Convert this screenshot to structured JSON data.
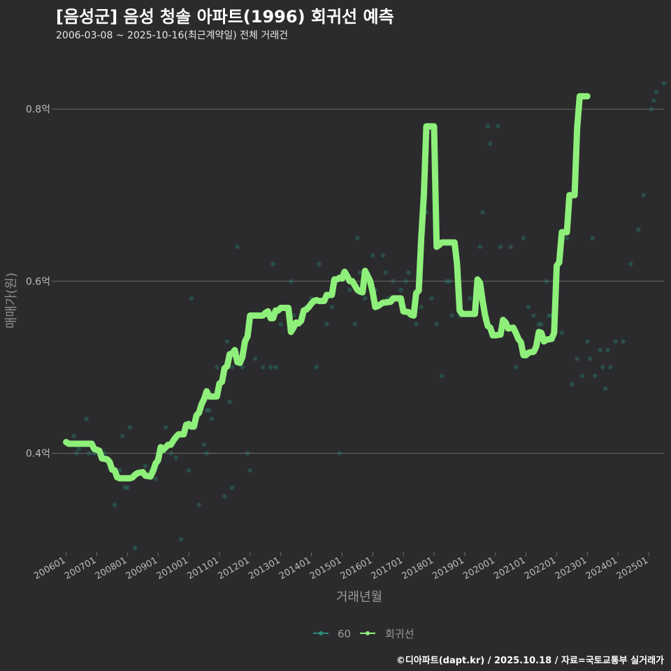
{
  "title": "[음성군] 음성 청솔 아파트(1996) 회귀선 예측",
  "subtitle": "2006-03-08 ~ 2025-10-16(최근계약일) 전체 거래건",
  "caption": "©디아파트(dapt.kr) / 2025.10.18 / 자료=국토교통부 실거래가",
  "colors": {
    "background": "#2b2b2d",
    "grid": "#6a6a6a",
    "points": "#2a7a6a",
    "line": "#8ef07a",
    "text": "#bdbdbd"
  },
  "chart_data": {
    "type": "line",
    "xlabel": "거래년월",
    "ylabel": "매매가(원)",
    "x_unit": "months since 2006-01",
    "xlim": [
      -4,
      234
    ],
    "ylim": [
      0.285,
      0.87
    ],
    "y_ticks": [
      {
        "value": 0.4,
        "label": "0.4억"
      },
      {
        "value": 0.6,
        "label": "0.6억"
      },
      {
        "value": 0.8,
        "label": "0.8억"
      }
    ],
    "x_ticks": [
      {
        "value": 0,
        "label": "200601"
      },
      {
        "value": 12,
        "label": "200701"
      },
      {
        "value": 24,
        "label": "200801"
      },
      {
        "value": 36,
        "label": "200901"
      },
      {
        "value": 48,
        "label": "201001"
      },
      {
        "value": 60,
        "label": "201101"
      },
      {
        "value": 72,
        "label": "201201"
      },
      {
        "value": 84,
        "label": "201301"
      },
      {
        "value": 96,
        "label": "201401"
      },
      {
        "value": 108,
        "label": "201501"
      },
      {
        "value": 120,
        "label": "201601"
      },
      {
        "value": 132,
        "label": "201701"
      },
      {
        "value": 144,
        "label": "201801"
      },
      {
        "value": 156,
        "label": "201901"
      },
      {
        "value": 168,
        "label": "202001"
      },
      {
        "value": 180,
        "label": "202101"
      },
      {
        "value": 192,
        "label": "202201"
      },
      {
        "value": 204,
        "label": "202301"
      },
      {
        "value": 216,
        "label": "202401"
      },
      {
        "value": 228,
        "label": "202501"
      }
    ],
    "legend": {
      "position": "bottom",
      "entries": [
        "60",
        "회귀선"
      ]
    },
    "series": [
      {
        "name": "60",
        "kind": "scatter",
        "points": [
          [
            2,
            0.41
          ],
          [
            3,
            0.42
          ],
          [
            4,
            0.4
          ],
          [
            5,
            0.405
          ],
          [
            8,
            0.44
          ],
          [
            9,
            0.4
          ],
          [
            11,
            0.4
          ],
          [
            14,
            0.395
          ],
          [
            15,
            0.4
          ],
          [
            19,
            0.34
          ],
          [
            21,
            0.38
          ],
          [
            22,
            0.42
          ],
          [
            23,
            0.36
          ],
          [
            24,
            0.36
          ],
          [
            25,
            0.43
          ],
          [
            26,
            0.37
          ],
          [
            27,
            0.29
          ],
          [
            31,
            0.385
          ],
          [
            33,
            0.38
          ],
          [
            35,
            0.37
          ],
          [
            39,
            0.43
          ],
          [
            41,
            0.4
          ],
          [
            43,
            0.395
          ],
          [
            45,
            0.3
          ],
          [
            48,
            0.38
          ],
          [
            49,
            0.58
          ],
          [
            52,
            0.34
          ],
          [
            54,
            0.41
          ],
          [
            55,
            0.4
          ],
          [
            55,
            0.45
          ],
          [
            56,
            0.45
          ],
          [
            57,
            0.44
          ],
          [
            59,
            0.5
          ],
          [
            62,
            0.35
          ],
          [
            63,
            0.53
          ],
          [
            64,
            0.46
          ],
          [
            65,
            0.5
          ],
          [
            65,
            0.36
          ],
          [
            67,
            0.64
          ],
          [
            69,
            0.5
          ],
          [
            70,
            0.53
          ],
          [
            71,
            0.4
          ],
          [
            72,
            0.38
          ],
          [
            74,
            0.51
          ],
          [
            77,
            0.5
          ],
          [
            80,
            0.5
          ],
          [
            81,
            0.62
          ],
          [
            82,
            0.5
          ],
          [
            84,
            0.55
          ],
          [
            88,
            0.6
          ],
          [
            89,
            0.56
          ],
          [
            92,
            0.56
          ],
          [
            94,
            0.57
          ],
          [
            96,
            0.58
          ],
          [
            98,
            0.5
          ],
          [
            99,
            0.62
          ],
          [
            102,
            0.55
          ],
          [
            104,
            0.57
          ],
          [
            107,
            0.4
          ],
          [
            108,
            0.61
          ],
          [
            111,
            0.59
          ],
          [
            113,
            0.55
          ],
          [
            114,
            0.65
          ],
          [
            115,
            0.61
          ],
          [
            117,
            0.58
          ],
          [
            119,
            0.6
          ],
          [
            120,
            0.63
          ],
          [
            121,
            0.59
          ],
          [
            124,
            0.63
          ],
          [
            125,
            0.61
          ],
          [
            126,
            0.58
          ],
          [
            128,
            0.6
          ],
          [
            131,
            0.59
          ],
          [
            133,
            0.6
          ],
          [
            134,
            0.61
          ],
          [
            137,
            0.55
          ],
          [
            139,
            0.57
          ],
          [
            141,
            0.68
          ],
          [
            143,
            0.58
          ],
          [
            145,
            0.55
          ],
          [
            147,
            0.49
          ],
          [
            149,
            0.6
          ],
          [
            150,
            0.6
          ],
          [
            151,
            0.56
          ],
          [
            154,
            0.56
          ],
          [
            158,
            0.58
          ],
          [
            160,
            0.59
          ],
          [
            162,
            0.64
          ],
          [
            163,
            0.68
          ],
          [
            165,
            0.78
          ],
          [
            166,
            0.76
          ],
          [
            169,
            0.78
          ],
          [
            170,
            0.64
          ],
          [
            174,
            0.64
          ],
          [
            176,
            0.5
          ],
          [
            179,
            0.65
          ],
          [
            181,
            0.57
          ],
          [
            183,
            0.56
          ],
          [
            185,
            0.55
          ],
          [
            186,
            0.55
          ],
          [
            188,
            0.6
          ],
          [
            189,
            0.56
          ],
          [
            190,
            0.56
          ],
          [
            191,
            0.55
          ],
          [
            194,
            0.54
          ],
          [
            196,
            0.65
          ],
          [
            198,
            0.48
          ],
          [
            200,
            0.51
          ],
          [
            202,
            0.49
          ],
          [
            204,
            0.53
          ],
          [
            205,
            0.51
          ],
          [
            206,
            0.65
          ],
          [
            207,
            0.49
          ],
          [
            209,
            0.52
          ],
          [
            210,
            0.5
          ],
          [
            211,
            0.475
          ],
          [
            212,
            0.52
          ],
          [
            213,
            0.5
          ],
          [
            215,
            0.53
          ],
          [
            218,
            0.53
          ],
          [
            221,
            0.62
          ],
          [
            224,
            0.66
          ],
          [
            226,
            0.7
          ],
          [
            229,
            0.8
          ],
          [
            230,
            0.81
          ],
          [
            231,
            0.82
          ],
          [
            234,
            0.83
          ]
        ]
      },
      {
        "name": "회귀선",
        "kind": "line",
        "points": [
          [
            0,
            0.413
          ],
          [
            1,
            0.411
          ],
          [
            6,
            0.411
          ],
          [
            8,
            0.411
          ],
          [
            10,
            0.411
          ],
          [
            11,
            0.405
          ],
          [
            13,
            0.403
          ],
          [
            14,
            0.394
          ],
          [
            16,
            0.393
          ],
          [
            17,
            0.39
          ],
          [
            18,
            0.381
          ],
          [
            19,
            0.38
          ],
          [
            20,
            0.372
          ],
          [
            21,
            0.371
          ],
          [
            25,
            0.371
          ],
          [
            26,
            0.372
          ],
          [
            27,
            0.375
          ],
          [
            28,
            0.377
          ],
          [
            30,
            0.378
          ],
          [
            31,
            0.374
          ],
          [
            33,
            0.373
          ],
          [
            34,
            0.379
          ],
          [
            35,
            0.388
          ],
          [
            36,
            0.392
          ],
          [
            37,
            0.407
          ],
          [
            38,
            0.404
          ],
          [
            40,
            0.41
          ],
          [
            41,
            0.41
          ],
          [
            42,
            0.415
          ],
          [
            43,
            0.419
          ],
          [
            44,
            0.422
          ],
          [
            46,
            0.422
          ],
          [
            47,
            0.433
          ],
          [
            48,
            0.434
          ],
          [
            49,
            0.431
          ],
          [
            50,
            0.431
          ],
          [
            51,
            0.444
          ],
          [
            52,
            0.447
          ],
          [
            53,
            0.457
          ],
          [
            54,
            0.463
          ],
          [
            55,
            0.472
          ],
          [
            56,
            0.466
          ],
          [
            57,
            0.466
          ],
          [
            59,
            0.466
          ],
          [
            60,
            0.481
          ],
          [
            61,
            0.483
          ],
          [
            62,
            0.499
          ],
          [
            63,
            0.501
          ],
          [
            64,
            0.515
          ],
          [
            65,
            0.516
          ],
          [
            66,
            0.52
          ],
          [
            67,
            0.506
          ],
          [
            68,
            0.505
          ],
          [
            69,
            0.512
          ],
          [
            70,
            0.53
          ],
          [
            71,
            0.536
          ],
          [
            72,
            0.56
          ],
          [
            77,
            0.56
          ],
          [
            78,
            0.563
          ],
          [
            79,
            0.565
          ],
          [
            80,
            0.557
          ],
          [
            81,
            0.557
          ],
          [
            82,
            0.566
          ],
          [
            83,
            0.566
          ],
          [
            84,
            0.569
          ],
          [
            87,
            0.569
          ],
          [
            88,
            0.541
          ],
          [
            89,
            0.546
          ],
          [
            90,
            0.552
          ],
          [
            91,
            0.551
          ],
          [
            92,
            0.554
          ],
          [
            93,
            0.566
          ],
          [
            94,
            0.567
          ],
          [
            95,
            0.57
          ],
          [
            96,
            0.574
          ],
          [
            97,
            0.577
          ],
          [
            98,
            0.578
          ],
          [
            99,
            0.577
          ],
          [
            101,
            0.577
          ],
          [
            102,
            0.584
          ],
          [
            104,
            0.584
          ],
          [
            105,
            0.602
          ],
          [
            106,
            0.602
          ],
          [
            107,
            0.604
          ],
          [
            108,
            0.603
          ],
          [
            109,
            0.611
          ],
          [
            110,
            0.606
          ],
          [
            111,
            0.6
          ],
          [
            112,
            0.6
          ],
          [
            113,
            0.595
          ],
          [
            114,
            0.59
          ],
          [
            115,
            0.588
          ],
          [
            116,
            0.587
          ],
          [
            117,
            0.612
          ],
          [
            118,
            0.606
          ],
          [
            119,
            0.6
          ],
          [
            120,
            0.587
          ],
          [
            121,
            0.57
          ],
          [
            122,
            0.571
          ],
          [
            123,
            0.573
          ],
          [
            124,
            0.575
          ],
          [
            127,
            0.576
          ],
          [
            128,
            0.58
          ],
          [
            131,
            0.58
          ],
          [
            132,
            0.565
          ],
          [
            134,
            0.564
          ],
          [
            135,
            0.561
          ],
          [
            136,
            0.56
          ],
          [
            137,
            0.586
          ],
          [
            138,
            0.589
          ],
          [
            139,
            0.65
          ],
          [
            140,
            0.7
          ],
          [
            141,
            0.78
          ],
          [
            142,
            0.78
          ],
          [
            144,
            0.78
          ],
          [
            145,
            0.64
          ],
          [
            146,
            0.642
          ],
          [
            147,
            0.645
          ],
          [
            152,
            0.645
          ],
          [
            153,
            0.62
          ],
          [
            154,
            0.566
          ],
          [
            155,
            0.562
          ],
          [
            156,
            0.562
          ],
          [
            160,
            0.562
          ],
          [
            161,
            0.602
          ],
          [
            162,
            0.598
          ],
          [
            163,
            0.577
          ],
          [
            164,
            0.56
          ],
          [
            165,
            0.548
          ],
          [
            166,
            0.546
          ],
          [
            167,
            0.537
          ],
          [
            168,
            0.537
          ],
          [
            170,
            0.538
          ],
          [
            171,
            0.555
          ],
          [
            172,
            0.552
          ],
          [
            173,
            0.545
          ],
          [
            175,
            0.546
          ],
          [
            176,
            0.54
          ],
          [
            177,
            0.533
          ],
          [
            178,
            0.529
          ],
          [
            179,
            0.514
          ],
          [
            180,
            0.514
          ],
          [
            181,
            0.517
          ],
          [
            183,
            0.518
          ],
          [
            184,
            0.524
          ],
          [
            185,
            0.541
          ],
          [
            186,
            0.54
          ],
          [
            187,
            0.53
          ],
          [
            188,
            0.532
          ],
          [
            190,
            0.533
          ],
          [
            191,
            0.54
          ],
          [
            192,
            0.618
          ],
          [
            193,
            0.622
          ],
          [
            194,
            0.657
          ],
          [
            195,
            0.657
          ],
          [
            196,
            0.657
          ],
          [
            197,
            0.7
          ],
          [
            198,
            0.7
          ],
          [
            199,
            0.7
          ],
          [
            200,
            0.778
          ],
          [
            201,
            0.815
          ],
          [
            204,
            0.815
          ]
        ]
      }
    ]
  }
}
